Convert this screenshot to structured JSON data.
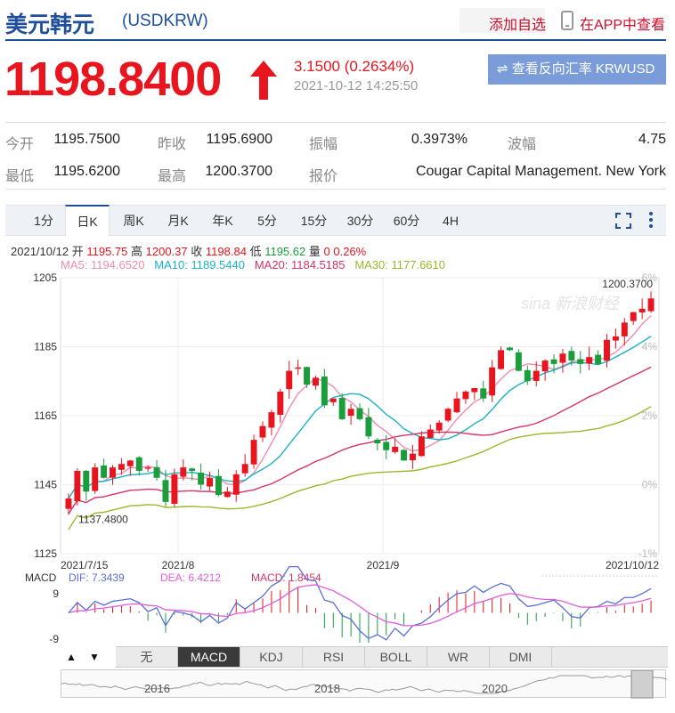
{
  "header": {
    "title": "美元韩元",
    "code": "(USDKRW)",
    "favorite_label": "添加自选",
    "app_label": "在APP中查看",
    "price": "1198.8400",
    "change": "3.1500 (0.2634%)",
    "timestamp": "2021-10-12 14:25:50",
    "reverse_button": "⇌ 查看反向汇率 KRWUSD"
  },
  "quote": {
    "open_label": "今开",
    "open_value": "1195.7500",
    "prev_label": "昨收",
    "prev_value": "1195.6900",
    "amp_label": "振幅",
    "amp_value": "0.3973%",
    "vol_label": "波幅",
    "vol_value": "4.75",
    "low_label": "最低",
    "low_value": "1195.6200",
    "high_label": "最高",
    "high_value": "1200.3700",
    "bid_label": "报价",
    "bid_value": "Cougar Capital Management. New York"
  },
  "tabs": [
    "1分",
    "日K",
    "周K",
    "月K",
    "年K",
    "5分",
    "15分",
    "30分",
    "60分",
    "4H"
  ],
  "info": {
    "date": "2021/10/12",
    "open_label": "开",
    "open": "1195.75",
    "high_label": "高",
    "high": "1200.37",
    "close_label": "收",
    "close": "1198.84",
    "low_label": "低",
    "low": "1195.62",
    "vol_label": "量",
    "vol": "0",
    "pct": "0.26%"
  },
  "ma": {
    "ma5": "MA5: 1194.6520",
    "ma10": "MA10: 1189.5440",
    "ma20": "MA20: 1184.5185",
    "ma30": "MA30: 1177.6610"
  },
  "colors": {
    "up": "#e8141e",
    "down": "#1a9e3b",
    "ma5": "#f08cb0",
    "ma10": "#1cb0c9",
    "ma20": "#d6336c",
    "ma30": "#9ab82d",
    "dif": "#5a6fd6",
    "dea": "#e05cdc"
  },
  "indicators": [
    "无",
    "MACD",
    "KDJ",
    "RSI",
    "BOLL",
    "WR",
    "DMI"
  ],
  "nav_years": [
    "2016",
    "2018",
    "2020"
  ],
  "chart_data": {
    "type": "candlestick",
    "y_ticks": [
      1205,
      1185,
      1165,
      1145,
      1125
    ],
    "pct_ticks": [
      "6%",
      "4%",
      "2%",
      "0%",
      "-1%"
    ],
    "ylim": [
      1125,
      1205
    ],
    "x_labels": [
      "2021/7/15",
      "2021/8",
      "2021/9",
      "2021/10/12"
    ],
    "max_label": "1200.3700",
    "min_label": "1137.4800",
    "watermark": "sina 新浪财经",
    "close": [
      1141,
      1149,
      1143,
      1150,
      1147,
      1150,
      1151,
      1152,
      1149,
      1150,
      1147,
      1140,
      1148,
      1150,
      1149,
      1145,
      1147,
      1142,
      1143,
      1148,
      1151,
      1158,
      1162,
      1166,
      1172,
      1178,
      1179,
      1174,
      1176,
      1168,
      1170,
      1164,
      1167,
      1164,
      1159,
      1157,
      1155,
      1156,
      1152,
      1154,
      1159,
      1161,
      1163,
      1167,
      1170,
      1172,
      1173,
      1170,
      1179,
      1184,
      1184,
      1178,
      1175,
      1178,
      1181,
      1180,
      1183,
      1181,
      1180,
      1182,
      1180,
      1187,
      1188,
      1192,
      1195,
      1196,
      1199
    ],
    "macd": {
      "labels": {
        "macd": "MACD",
        "dif": "DIF: 7.3439",
        "dea": "DEA: 6.4212",
        "hist": "MACD: 1.8454"
      },
      "top_tick": "9",
      "bottom_tick": "-9"
    }
  }
}
